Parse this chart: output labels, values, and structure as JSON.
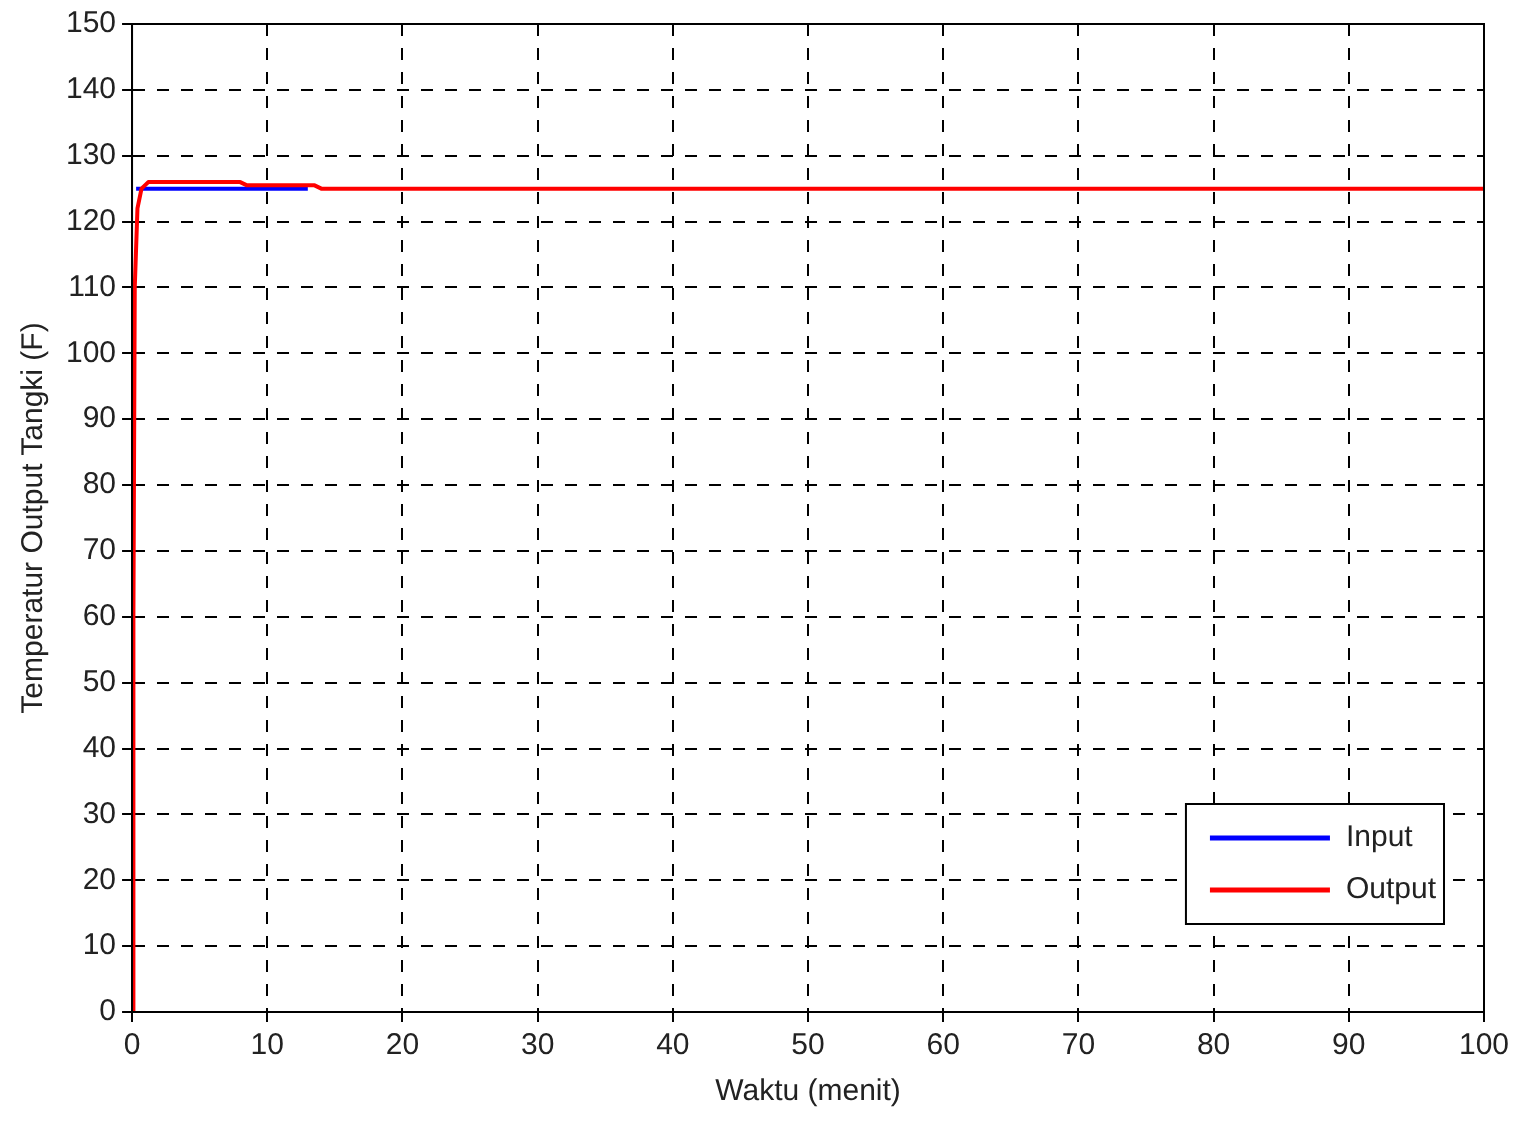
{
  "chart_data": {
    "type": "line",
    "xlabel": "Waktu (menit)",
    "ylabel": "Temperatur Output Tangki (F)",
    "xlim": [
      0,
      100
    ],
    "xticks": [
      0,
      10,
      20,
      30,
      40,
      50,
      60,
      70,
      80,
      90,
      100
    ],
    "ylim": [
      0,
      150
    ],
    "yticks": [
      0,
      10,
      20,
      30,
      40,
      50,
      60,
      70,
      80,
      90,
      100,
      110,
      120,
      130,
      140,
      150
    ],
    "grid": true,
    "legend": "bottom right",
    "line_style": "solid",
    "marker": "none",
    "series": [
      {
        "name": "Input",
        "color": "#0000ff",
        "x": [
          0.3,
          4,
          8,
          13
        ],
        "values": [
          125,
          125,
          125,
          125
        ]
      },
      {
        "name": "Output",
        "color": "#ff0000",
        "x": [
          0,
          0.1,
          0.2,
          0.4,
          0.7,
          1.2,
          8,
          8.5,
          13.5,
          14,
          100
        ],
        "values": [
          0,
          60,
          110,
          122,
          125,
          126,
          126,
          125.5,
          125.5,
          125,
          125
        ]
      }
    ]
  }
}
